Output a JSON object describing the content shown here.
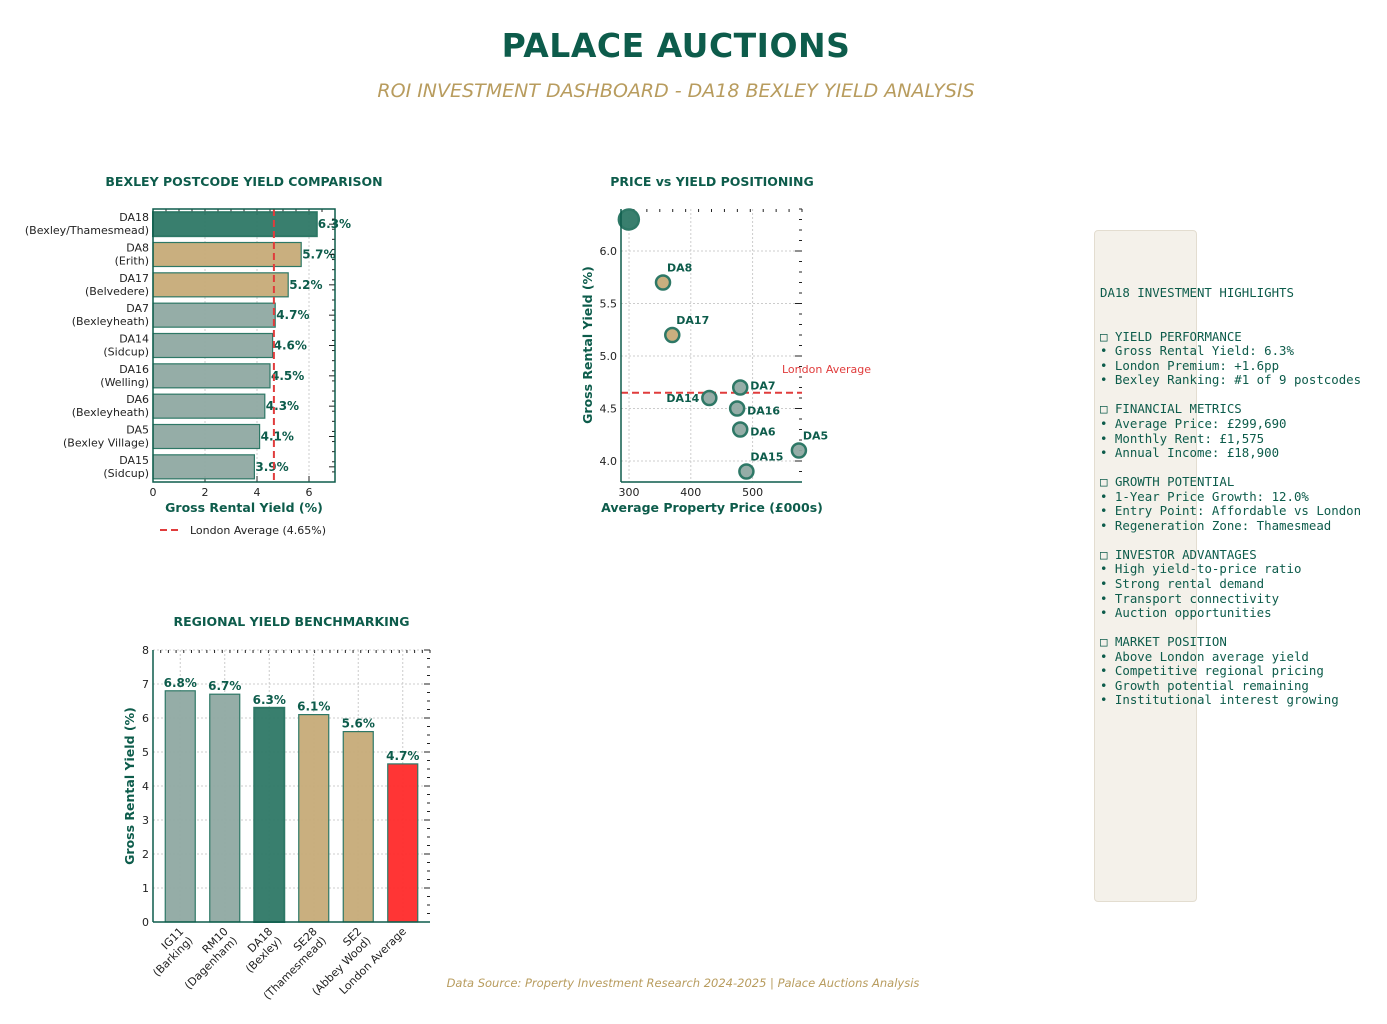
{
  "header": {
    "title": "PALACE AUCTIONS",
    "subtitle": "ROI INVESTMENT DASHBOARD - DA18 BEXLEY YIELD ANALYSIS"
  },
  "footer": "Data Source: Property Investment Research 2024-2025 | Palace Auctions Analysis",
  "colors": {
    "primary": "#0d5c4b",
    "accent_gold": "#b89c5e",
    "bar_highlight": "#2e7866",
    "bar_gold": "#c6ab78",
    "bar_grey": "#8fa9a2",
    "london_red": "#ff2a2a",
    "reference_line": "#e03c3c"
  },
  "chart_data": [
    {
      "type": "bar",
      "orientation": "horizontal",
      "title": "BEXLEY POSTCODE YIELD COMPARISON",
      "xlabel": "Gross Rental Yield (%)",
      "xlim": [
        0,
        7
      ],
      "xticks": [
        "0",
        "2",
        "4",
        "6"
      ],
      "grid": true,
      "categories": [
        "DA18\n(Bexley/Thamesmead)",
        "DA8\n(Erith)",
        "DA17\n(Belvedere)",
        "DA7\n(Bexleyheath)",
        "DA14\n(Sidcup)",
        "DA16\n(Welling)",
        "DA6\n(Bexleyheath)",
        "DA5\n(Bexley Village)",
        "DA15\n(Sidcup)"
      ],
      "values": [
        6.3,
        5.7,
        5.2,
        4.7,
        4.6,
        4.5,
        4.3,
        4.1,
        3.9
      ],
      "data_labels": [
        "6.3%",
        "5.7%",
        "5.2%",
        "4.7%",
        "4.6%",
        "4.5%",
        "4.3%",
        "4.1%",
        "3.9%"
      ],
      "bar_colors": [
        "#2e7866",
        "#c6ab78",
        "#c6ab78",
        "#8fa9a2",
        "#8fa9a2",
        "#8fa9a2",
        "#8fa9a2",
        "#8fa9a2",
        "#8fa9a2"
      ],
      "reference_line": {
        "value": 4.65,
        "label": "London Average (4.65%)"
      },
      "legend_placement": "lower-left"
    },
    {
      "type": "scatter",
      "title": "PRICE vs YIELD POSITIONING",
      "xlabel": "Average Property Price (£000s)",
      "ylabel": "Gross Rental Yield (%)",
      "xlim": [
        287,
        580
      ],
      "ylim": [
        3.8,
        6.4
      ],
      "xticks": [
        "300",
        "400",
        "500"
      ],
      "yticks": [
        "4.0",
        "4.5",
        "5.0",
        "5.5",
        "6.0"
      ],
      "grid": true,
      "points": [
        {
          "label": "",
          "x": 299.69,
          "y": 6.3,
          "color": "#2e7866",
          "highlight": true
        },
        {
          "label": "DA8",
          "x": 355,
          "y": 5.7,
          "color": "#c6ab78"
        },
        {
          "label": "DA17",
          "x": 370,
          "y": 5.2,
          "color": "#c6ab78"
        },
        {
          "label": "DA7",
          "x": 480,
          "y": 4.7,
          "color": "#8fa9a2"
        },
        {
          "label": "DA14",
          "x": 430,
          "y": 4.6,
          "color": "#8fa9a2"
        },
        {
          "label": "DA16",
          "x": 475,
          "y": 4.5,
          "color": "#8fa9a2"
        },
        {
          "label": "DA6",
          "x": 480,
          "y": 4.3,
          "color": "#8fa9a2"
        },
        {
          "label": "DA5",
          "x": 575,
          "y": 4.1,
          "color": "#8fa9a2"
        },
        {
          "label": "DA15",
          "x": 490,
          "y": 3.9,
          "color": "#8fa9a2"
        }
      ],
      "reference_line": {
        "value": 4.65,
        "label": "London Average"
      }
    },
    {
      "type": "bar",
      "orientation": "vertical",
      "title": "REGIONAL YIELD BENCHMARKING",
      "ylabel": "Gross Rental Yield (%)",
      "ylim": [
        0,
        8
      ],
      "yticks": [
        "0",
        "1",
        "2",
        "3",
        "4",
        "5",
        "6",
        "7",
        "8"
      ],
      "grid": true,
      "categories": [
        "IG11\n(Barking)",
        "RM10\n(Dagenham)",
        "DA18\n(Bexley)",
        "SE28\n(Thamesmead)",
        "SE2\n(Abbey Wood)",
        "London Average"
      ],
      "values": [
        6.8,
        6.7,
        6.3,
        6.1,
        5.6,
        4.65
      ],
      "data_labels": [
        "6.8%",
        "6.7%",
        "6.3%",
        "6.1%",
        "5.6%",
        "4.7%"
      ],
      "bar_colors": [
        "#8fa9a2",
        "#8fa9a2",
        "#2e7866",
        "#c6ab78",
        "#c6ab78",
        "#ff2a2a"
      ]
    }
  ],
  "highlights_panel": {
    "title": "DA18 INVESTMENT HIGHLIGHTS",
    "sections": [
      {
        "icon": "□",
        "heading": "YIELD PERFORMANCE",
        "items": [
          "Gross Rental Yield: 6.3%",
          "London Premium: +1.6pp",
          "Bexley Ranking: #1 of 9 postcodes"
        ]
      },
      {
        "icon": "□",
        "heading": "FINANCIAL METRICS",
        "items": [
          "Average Price: £299,690",
          "Monthly Rent: £1,575",
          "Annual Income: £18,900"
        ]
      },
      {
        "icon": "□",
        "heading": "GROWTH POTENTIAL",
        "items": [
          "1-Year Price Growth: 12.0%",
          "Entry Point: Affordable vs London",
          "Regeneration Zone: Thamesmead"
        ]
      },
      {
        "icon": "□",
        "heading": "INVESTOR ADVANTAGES",
        "items": [
          "High yield-to-price ratio",
          "Strong rental demand",
          "Transport connectivity",
          "Auction opportunities"
        ]
      },
      {
        "icon": "□",
        "heading": "MARKET POSITION",
        "items": [
          "Above London average yield",
          "Competitive regional pricing",
          "Growth potential remaining",
          "Institutional interest growing"
        ]
      }
    ]
  }
}
